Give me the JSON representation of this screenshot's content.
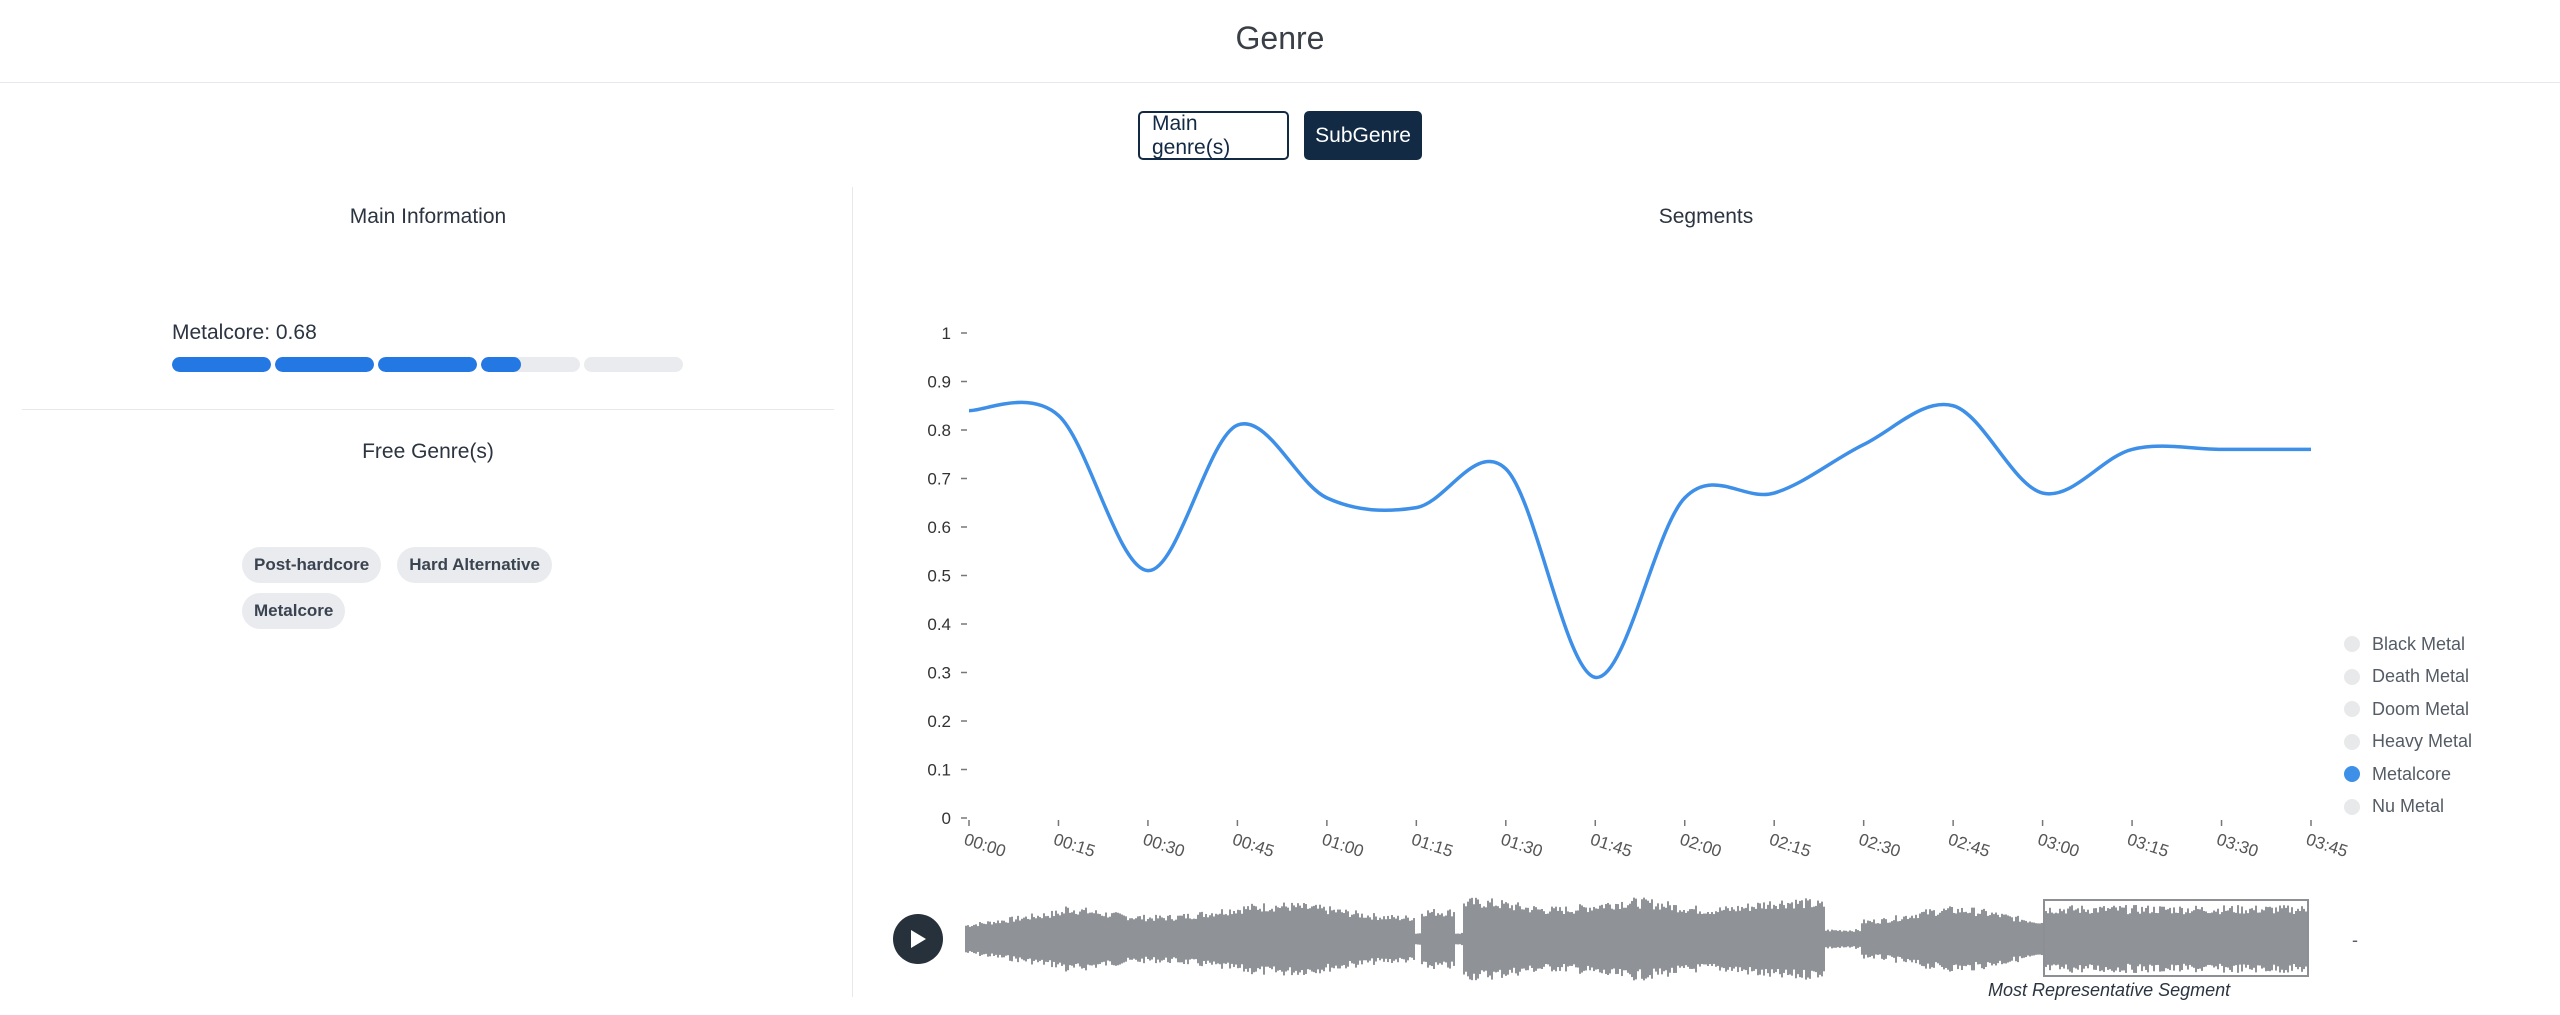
{
  "header": {
    "title": "Genre"
  },
  "toggle": {
    "main_label": "Main genre(s)",
    "sub_label": "SubGenre"
  },
  "left": {
    "main_info_title": "Main Information",
    "top_genre_label": "Metalcore: 0.68",
    "top_genre_score": 0.68,
    "free_genres_title": "Free Genre(s)",
    "free_genres": [
      "Post-hardcore",
      "Hard Alternative",
      "Metalcore"
    ]
  },
  "segments": {
    "title": "Segments",
    "legend": [
      "Black Metal",
      "Death Metal",
      "Doom Metal",
      "Heavy Metal",
      "Metalcore",
      "Nu Metal"
    ],
    "active_series": "Metalcore",
    "accent_color": "#3d8fe8"
  },
  "chart_data": {
    "type": "line",
    "ylim": [
      0,
      1
    ],
    "yticks": [
      "0",
      "0.1",
      "0.2",
      "0.3",
      "0.4",
      "0.5",
      "0.6",
      "0.7",
      "0.8",
      "0.9",
      "1"
    ],
    "xticks": [
      "00:00",
      "00:15",
      "00:30",
      "00:45",
      "01:00",
      "01:15",
      "01:30",
      "01:45",
      "02:00",
      "02:15",
      "02:30",
      "02:45",
      "03:00",
      "03:15",
      "03:30",
      "03:45"
    ],
    "series": [
      {
        "name": "Metalcore",
        "x": [
          0,
          15,
          30,
          45,
          60,
          75,
          90,
          105,
          120,
          135,
          150,
          165,
          180,
          195,
          210,
          225
        ],
        "values": [
          0.84,
          0.83,
          0.51,
          0.81,
          0.66,
          0.64,
          0.72,
          0.29,
          0.66,
          0.67,
          0.77,
          0.85,
          0.67,
          0.76,
          0.76,
          0.76
        ]
      }
    ]
  },
  "player": {
    "representative_caption": "Most Representative Segment",
    "time_display": "-"
  }
}
